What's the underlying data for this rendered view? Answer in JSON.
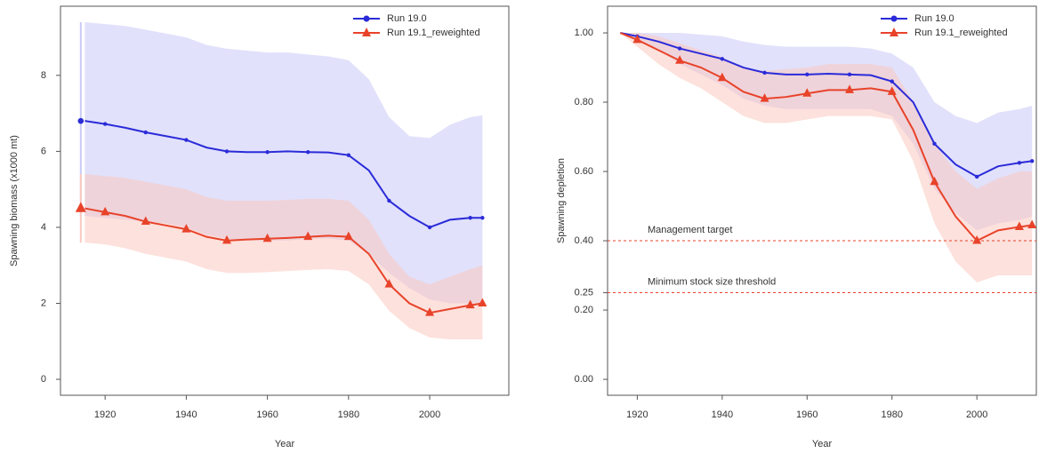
{
  "chart_data": [
    {
      "type": "line",
      "xlabel": "Year",
      "ylabel": "Spawning biomass (x1000 mt)",
      "xlim": [
        1909,
        2019.5
      ],
      "ylim": [
        -0.42,
        9.82
      ],
      "xticks": [
        1920,
        1940,
        1960,
        1980,
        2000
      ],
      "yticks": [
        0,
        2,
        4,
        6,
        8
      ],
      "legend": "top-right",
      "x": [
        1915,
        1920,
        1925,
        1930,
        1935,
        1940,
        1945,
        1950,
        1955,
        1960,
        1965,
        1970,
        1975,
        1980,
        1985,
        1990,
        1995,
        2000,
        2005,
        2010,
        2013
      ],
      "series": [
        {
          "name": "Run 19.0",
          "color": "#2b2bd9",
          "band_color": "#c9c9f7",
          "marker": "circle",
          "values": [
            6.8,
            6.72,
            6.62,
            6.5,
            6.4,
            6.3,
            6.1,
            6.0,
            5.98,
            5.98,
            6.0,
            5.98,
            5.97,
            5.9,
            5.5,
            4.7,
            4.3,
            4.0,
            4.2,
            4.25,
            4.25
          ],
          "upper": [
            9.4,
            9.35,
            9.3,
            9.2,
            9.1,
            9.0,
            8.8,
            8.7,
            8.65,
            8.6,
            8.6,
            8.55,
            8.5,
            8.4,
            7.9,
            6.9,
            6.4,
            6.35,
            6.7,
            6.9,
            6.95
          ],
          "lower": [
            4.3,
            4.25,
            4.2,
            4.15,
            4.1,
            4.0,
            3.8,
            3.7,
            3.65,
            3.65,
            3.65,
            3.7,
            3.7,
            3.65,
            3.3,
            2.8,
            2.4,
            2.1,
            2.0,
            2.0,
            2.0
          ],
          "initial": {
            "x": 1914,
            "value": 6.8,
            "lower": 4.3,
            "upper": 9.4
          }
        },
        {
          "name": "Run 19.1_reweighted",
          "color": "#e8432a",
          "band_color": "#fbc9bf",
          "marker": "triangle",
          "values": [
            4.5,
            4.4,
            4.3,
            4.15,
            4.05,
            3.95,
            3.75,
            3.65,
            3.68,
            3.7,
            3.72,
            3.75,
            3.78,
            3.75,
            3.3,
            2.5,
            2.0,
            1.75,
            1.85,
            1.95,
            2.0
          ],
          "upper": [
            5.4,
            5.35,
            5.3,
            5.2,
            5.1,
            5.0,
            4.8,
            4.7,
            4.7,
            4.7,
            4.72,
            4.75,
            4.75,
            4.7,
            4.2,
            3.3,
            2.7,
            2.5,
            2.7,
            2.9,
            3.0
          ],
          "lower": [
            3.6,
            3.55,
            3.45,
            3.3,
            3.2,
            3.1,
            2.9,
            2.8,
            2.8,
            2.82,
            2.85,
            2.88,
            2.9,
            2.85,
            2.5,
            1.8,
            1.35,
            1.1,
            1.05,
            1.05,
            1.05
          ],
          "initial": {
            "x": 1914,
            "value": 4.5,
            "lower": 3.6,
            "upper": 5.4
          }
        }
      ]
    },
    {
      "type": "line",
      "xlabel": "Year",
      "ylabel": "Spawning depletion",
      "xlim": [
        1913,
        2014
      ],
      "ylim": [
        -0.046,
        1.077
      ],
      "xticks": [
        1920,
        1940,
        1960,
        1980,
        2000
      ],
      "yticks": [
        {
          "value": 0,
          "label": "0.00"
        },
        {
          "value": 0.2,
          "label": "0.20"
        },
        {
          "value": 0.25,
          "label": "0.25"
        },
        {
          "value": 0.4,
          "label": "0.40"
        },
        {
          "value": 0.6,
          "label": "0.60"
        },
        {
          "value": 0.8,
          "label": "0.80"
        },
        {
          "value": 1,
          "label": "1.00"
        }
      ],
      "legend": "top-right",
      "hlines": [
        {
          "value": 0.4,
          "label": "Management target",
          "color": "#e8432a"
        },
        {
          "value": 0.25,
          "label": "Minimum stock size threshold",
          "color": "#e8432a"
        }
      ],
      "x": [
        1916,
        1920,
        1925,
        1930,
        1935,
        1940,
        1945,
        1950,
        1955,
        1960,
        1965,
        1970,
        1975,
        1980,
        1985,
        1990,
        1995,
        2000,
        2005,
        2010,
        2013
      ],
      "series": [
        {
          "name": "Run 19.0",
          "color": "#2b2bd9",
          "band_color": "#c9c9f7",
          "marker": "circle",
          "values": [
            1.0,
            0.99,
            0.975,
            0.955,
            0.94,
            0.925,
            0.9,
            0.885,
            0.88,
            0.88,
            0.882,
            0.88,
            0.878,
            0.86,
            0.8,
            0.68,
            0.62,
            0.585,
            0.615,
            0.625,
            0.63
          ],
          "upper": [
            1.0,
            1.0,
            1.0,
            1.0,
            0.995,
            0.99,
            0.975,
            0.965,
            0.96,
            0.96,
            0.96,
            0.96,
            0.955,
            0.94,
            0.9,
            0.8,
            0.76,
            0.74,
            0.77,
            0.78,
            0.79
          ],
          "lower": [
            1.0,
            0.98,
            0.95,
            0.91,
            0.88,
            0.85,
            0.81,
            0.79,
            0.78,
            0.78,
            0.78,
            0.78,
            0.78,
            0.76,
            0.68,
            0.55,
            0.48,
            0.43,
            0.45,
            0.46,
            0.47
          ]
        },
        {
          "name": "Run 19.1_reweighted",
          "color": "#e8432a",
          "band_color": "#fbc9bf",
          "marker": "triangle",
          "values": [
            1.0,
            0.98,
            0.95,
            0.92,
            0.9,
            0.87,
            0.83,
            0.81,
            0.815,
            0.825,
            0.835,
            0.835,
            0.84,
            0.83,
            0.72,
            0.57,
            0.47,
            0.4,
            0.43,
            0.44,
            0.445
          ],
          "upper": [
            1.0,
            1.0,
            0.99,
            0.97,
            0.95,
            0.93,
            0.9,
            0.89,
            0.895,
            0.9,
            0.91,
            0.91,
            0.91,
            0.9,
            0.8,
            0.68,
            0.6,
            0.55,
            0.58,
            0.6,
            0.6
          ],
          "lower": [
            1.0,
            0.96,
            0.91,
            0.87,
            0.84,
            0.8,
            0.76,
            0.74,
            0.74,
            0.75,
            0.76,
            0.76,
            0.76,
            0.75,
            0.63,
            0.45,
            0.34,
            0.28,
            0.3,
            0.3,
            0.3
          ]
        }
      ]
    }
  ]
}
